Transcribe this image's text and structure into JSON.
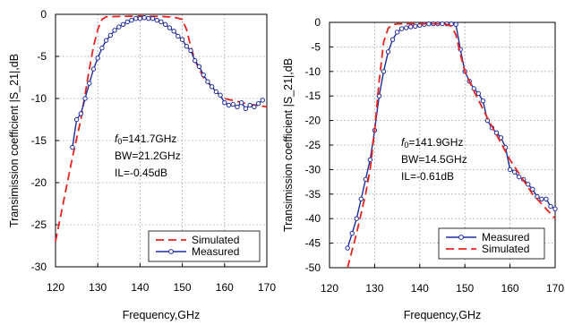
{
  "chart_data": [
    {
      "type": "line",
      "xlabel": "Frequency,GHz",
      "ylabel": "Transimission coefficient  |S_21|,dB",
      "xlim": [
        120,
        170
      ],
      "ylim": [
        -30,
        0
      ],
      "xticks": [
        120,
        130,
        140,
        150,
        160,
        170
      ],
      "yticks": [
        0,
        -5,
        -10,
        -15,
        -20,
        -25,
        -30
      ],
      "grid": "dotted",
      "legend_position": "bottom-right",
      "annotations": [
        "f₀=141.7GHz",
        "BW=21.2GHz",
        "IL=-0.45dB"
      ],
      "series": [
        {
          "name": "Simulated",
          "style": "dashed",
          "color": "#e8231f",
          "x": [
            120,
            122,
            124,
            126,
            127,
            128,
            129,
            130,
            131,
            132,
            135,
            140,
            145,
            148,
            150,
            151,
            152,
            153,
            155,
            158,
            160,
            165,
            170
          ],
          "y": [
            -27,
            -22,
            -17,
            -12.5,
            -9.5,
            -6.5,
            -3.8,
            -1.8,
            -0.6,
            -0.3,
            -0.25,
            -0.2,
            -0.25,
            -0.35,
            -0.6,
            -1.8,
            -3.8,
            -5.5,
            -7.5,
            -9.2,
            -10,
            -10.6,
            -11
          ]
        },
        {
          "name": "Measured",
          "style": "line-markers",
          "color": "#1f2c9c",
          "x": [
            124,
            125,
            126,
            127,
            128,
            129,
            130,
            131,
            132,
            133,
            134,
            135,
            136,
            137,
            138,
            139,
            140,
            141,
            142,
            143,
            144,
            145,
            146,
            147,
            148,
            149,
            150,
            151,
            152,
            153,
            154,
            155,
            156,
            157,
            158,
            159,
            160,
            161,
            162,
            163,
            164,
            165,
            166,
            167,
            168,
            169
          ],
          "y": [
            -15.8,
            -12.5,
            -11.8,
            -10,
            -8.2,
            -6.5,
            -5.2,
            -4,
            -3.1,
            -2.5,
            -1.9,
            -1.5,
            -1.2,
            -0.9,
            -0.7,
            -0.5,
            -0.5,
            -0.4,
            -0.5,
            -0.5,
            -0.7,
            -0.9,
            -1.2,
            -1.6,
            -2,
            -2.6,
            -3,
            -3.8,
            -4.3,
            -5.5,
            -6.2,
            -7.2,
            -8,
            -8.6,
            -9.2,
            -9.6,
            -10.5,
            -10.8,
            -10.7,
            -11,
            -10.5,
            -11.2,
            -10.8,
            -11,
            -10.6,
            -10.2
          ]
        }
      ]
    },
    {
      "type": "line",
      "xlabel": "Frequency,GHz",
      "ylabel": "Transimission coefficient  |S_21|,dB",
      "xlim": [
        120,
        170
      ],
      "ylim": [
        -50,
        0
      ],
      "xticks": [
        120,
        130,
        140,
        150,
        160,
        170
      ],
      "yticks": [
        0,
        -5,
        -10,
        -15,
        -20,
        -25,
        -30,
        -35,
        -40,
        -45,
        -50
      ],
      "grid": "dotted",
      "legend_position": "bottom-right",
      "annotations": [
        "f₀=141.9GHz",
        "BW=14.5GHz",
        "IL=-0.61dB"
      ],
      "series": [
        {
          "name": "Measured",
          "style": "line-markers",
          "color": "#1f2c9c",
          "x": [
            124,
            125,
            126,
            127,
            128,
            129,
            130,
            131,
            132,
            133,
            134,
            135,
            136,
            137,
            138,
            139,
            140,
            141,
            142,
            143,
            144,
            145,
            146,
            147,
            148,
            149,
            150,
            151,
            152,
            153,
            154,
            155,
            156,
            157,
            158,
            159,
            160,
            161,
            162,
            163,
            164,
            165,
            166,
            167,
            168,
            169,
            170
          ],
          "y": [
            -46,
            -43,
            -40,
            -36,
            -32,
            -28,
            -22,
            -15,
            -10,
            -6,
            -3.5,
            -2,
            -1.3,
            -1.1,
            -0.9,
            -0.8,
            -0.6,
            -0.4,
            -0.3,
            -0.3,
            -0.3,
            -0.3,
            -0.3,
            -0.3,
            -0.4,
            -5.5,
            -10,
            -12,
            -13.5,
            -14.5,
            -16,
            -20,
            -21.5,
            -22.5,
            -23.5,
            -25.5,
            -30,
            -30.5,
            -31.5,
            -32,
            -33,
            -34,
            -35.5,
            -36,
            -36,
            -37.5,
            -38
          ]
        },
        {
          "name": "Simulated",
          "style": "dashed",
          "color": "#e8231f",
          "x": [
            124,
            126,
            128,
            129,
            130,
            131,
            132,
            133,
            134,
            135,
            140,
            145,
            146,
            147,
            148,
            149,
            150,
            152,
            155,
            160,
            165,
            170
          ],
          "y": [
            -50,
            -43,
            -35,
            -30,
            -22,
            -12,
            -4,
            -1.2,
            -0.5,
            -0.3,
            -0.3,
            -0.3,
            -0.4,
            -0.8,
            -2.5,
            -6.5,
            -10,
            -14,
            -19.5,
            -28,
            -35,
            -40
          ]
        }
      ]
    }
  ]
}
